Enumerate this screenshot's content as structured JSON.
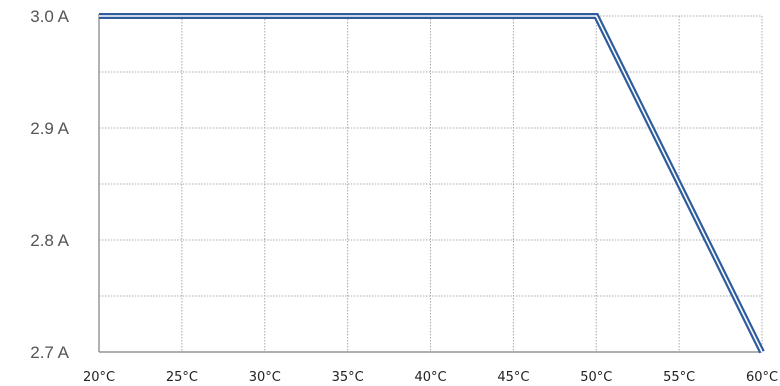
{
  "chart_data": {
    "type": "line",
    "title": "",
    "xlabel": "",
    "ylabel": "",
    "x": [
      20,
      50,
      60
    ],
    "xlim": [
      20,
      60
    ],
    "ylim": [
      2.7,
      3.0
    ],
    "x_ticks": [
      {
        "value": 20,
        "label": "20°C"
      },
      {
        "value": 25,
        "label": "25°C"
      },
      {
        "value": 30,
        "label": "30°C"
      },
      {
        "value": 35,
        "label": "35°C"
      },
      {
        "value": 40,
        "label": "40°C"
      },
      {
        "value": 45,
        "label": "45°C"
      },
      {
        "value": 50,
        "label": "50°C"
      },
      {
        "value": 55,
        "label": "55°C"
      },
      {
        "value": 60,
        "label": "60°C"
      }
    ],
    "y_ticks": [
      {
        "value": 3.0,
        "label": "3.0 A"
      },
      {
        "value": 2.9,
        "label": "2.9 A"
      },
      {
        "value": 2.8,
        "label": "2.8 A"
      },
      {
        "value": 2.7,
        "label": "2.7 A"
      }
    ],
    "y_minor_gridlines": [
      2.75,
      2.85,
      2.95
    ],
    "series": [
      {
        "values": [
          3.0,
          3.0,
          2.7
        ],
        "color": "#2e5c9e"
      }
    ],
    "grid": true,
    "gridline_style": "dotted",
    "legend": "none"
  }
}
